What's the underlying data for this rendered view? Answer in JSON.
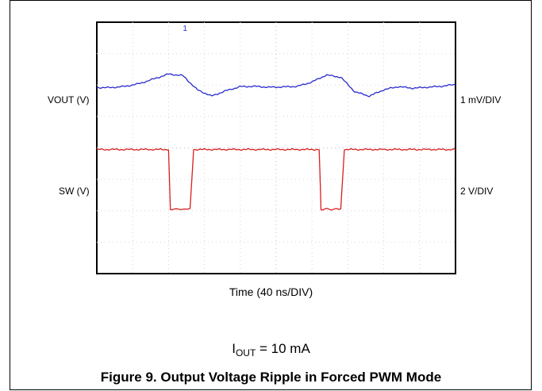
{
  "chart_data": {
    "type": "line",
    "title": "",
    "xlabel": "Time (40 ns/DIV)",
    "x_divisions": 10,
    "y_divisions": 8,
    "grid": true,
    "series": [
      {
        "name": "VOUT (V)",
        "scale_label": "1 mV/DIV",
        "color": "#2a2ad0",
        "x_div": [
          0,
          0.4,
          0.8,
          1.2,
          1.6,
          2.0,
          2.4,
          2.8,
          3.2,
          3.6,
          4.0,
          4.4,
          4.8,
          5.2,
          5.6,
          6.0,
          6.4,
          6.8,
          7.2,
          7.6,
          8.0,
          8.4,
          8.8,
          9.2,
          9.6,
          10.0
        ],
        "y_div": [
          5.92,
          5.92,
          5.96,
          6.05,
          6.2,
          6.35,
          6.3,
          5.85,
          5.65,
          5.82,
          5.95,
          5.96,
          5.93,
          5.94,
          5.96,
          6.1,
          6.32,
          6.25,
          5.78,
          5.65,
          5.85,
          5.95,
          5.9,
          5.93,
          5.96,
          6.02
        ]
      },
      {
        "name": "SW (V)",
        "scale_label": "2 V/DIV",
        "color": "#d81e1e",
        "x_div": [
          0,
          1.9,
          2.0,
          2.05,
          2.5,
          2.6,
          2.7,
          5.0,
          6.1,
          6.2,
          6.25,
          6.7,
          6.8,
          6.9,
          10.0
        ],
        "y_div": [
          3.95,
          3.95,
          3.95,
          2.05,
          2.05,
          2.05,
          3.95,
          3.95,
          3.95,
          3.95,
          2.05,
          2.05,
          2.05,
          3.95,
          3.95
        ]
      }
    ],
    "marker_symbol": "1"
  },
  "annotations": {
    "condition": {
      "prefix": "I",
      "subscript": "OUT",
      "suffix": " = 10 mA"
    },
    "caption": "Figure 9. Output Voltage Ripple in Forced PWM Mode"
  }
}
